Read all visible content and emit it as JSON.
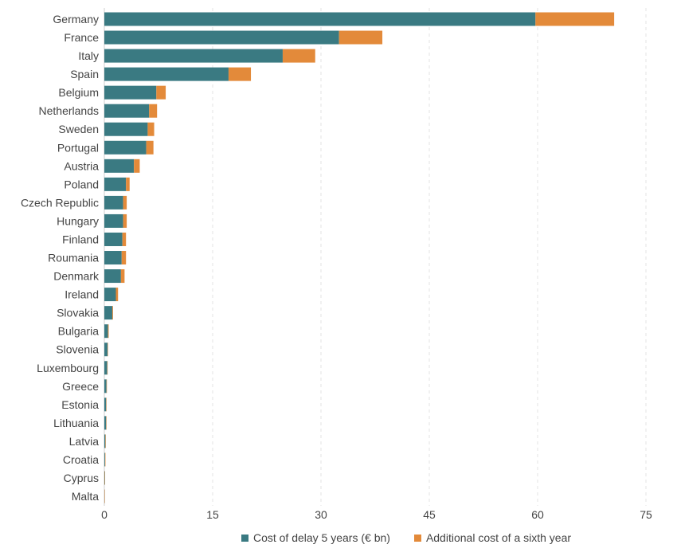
{
  "chart_data": {
    "type": "bar",
    "orientation": "horizontal",
    "stacked": true,
    "title": "",
    "xlabel": "",
    "ylabel": "",
    "xlim": [
      0,
      75
    ],
    "xticks": [
      0,
      15,
      30,
      45,
      60,
      75
    ],
    "grid": "vertical dashed",
    "legend_position": "bottom",
    "categories": [
      "Germany",
      "France",
      "Italy",
      "Spain",
      "Belgium",
      "Netherlands",
      "Sweden",
      "Portugal",
      "Austria",
      "Poland",
      "Czech Republic",
      "Hungary",
      "Finland",
      "Roumania",
      "Denmark",
      "Ireland",
      "Slovakia",
      "Bulgaria",
      "Slovenia",
      "Luxembourg",
      "Greece",
      "Estonia",
      "Lithuania",
      "Latvia",
      "Croatia",
      "Cyprus",
      "Malta"
    ],
    "series": [
      {
        "name": "Cost of delay 5 years (€ bn)",
        "color": "#3a7a82",
        "values": [
          59.7,
          32.5,
          24.7,
          17.2,
          7.2,
          6.2,
          6.0,
          5.8,
          4.1,
          3.0,
          2.6,
          2.6,
          2.5,
          2.4,
          2.3,
          1.6,
          1.1,
          0.5,
          0.45,
          0.4,
          0.3,
          0.25,
          0.25,
          0.15,
          0.1,
          0.05,
          0.02
        ]
      },
      {
        "name": "Additional cost of a sixth year",
        "color": "#e38a3a",
        "values": [
          10.9,
          6.0,
          4.5,
          3.1,
          1.3,
          1.1,
          0.9,
          1.0,
          0.8,
          0.5,
          0.5,
          0.5,
          0.5,
          0.6,
          0.5,
          0.3,
          0.1,
          0.1,
          0.05,
          0.05,
          0.05,
          0.05,
          0.05,
          0.05,
          0.02,
          0.03,
          0.01
        ]
      }
    ]
  }
}
